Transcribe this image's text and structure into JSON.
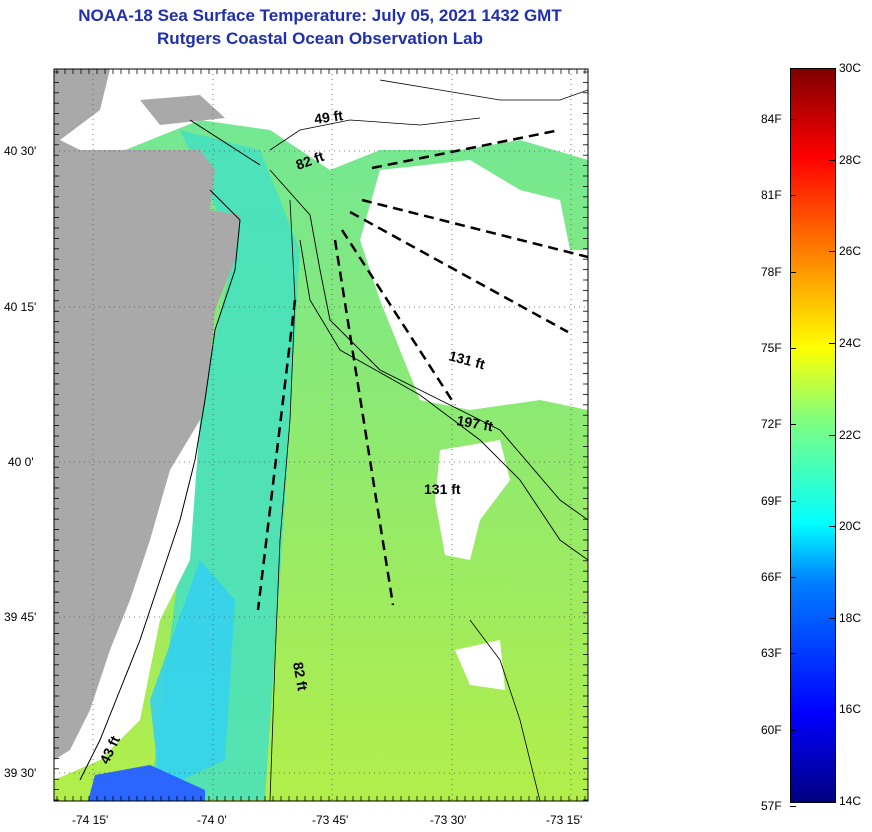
{
  "title": {
    "line1": "NOAA-18 Sea Surface Temperature:  July 05, 2021 1432 GMT",
    "line2": "Rutgers Coastal Ocean Observation Lab"
  },
  "map": {
    "lat_labels": [
      "40 30'",
      "40 15'",
      "40 0'",
      "39 45'",
      "39 30'"
    ],
    "lon_labels": [
      "-74 15'",
      "-74 0'",
      "-73 45'",
      "-73 30'",
      "-73 15'"
    ],
    "depth_labels": [
      "49 ft",
      "82 ft",
      "131 ft",
      "197 ft",
      "131 ft",
      "82 ft",
      "43 ft"
    ],
    "colors": {
      "land": "#a9a9a9",
      "cloud": "#ffffff",
      "water_warm": "#a8ee50",
      "water_mid": "#6fe79a",
      "water_cool": "#31dbe0",
      "water_cold": "#1f63ff"
    }
  },
  "colorbar": {
    "f_labels": [
      "84F",
      "81F",
      "78F",
      "75F",
      "72F",
      "69F",
      "66F",
      "63F",
      "60F",
      "57F"
    ],
    "c_labels": [
      "30C",
      "28C",
      "26C",
      "24C",
      "22C",
      "20C",
      "18C",
      "16C",
      "14C"
    ],
    "colors": [
      "#00007f",
      "#0000ff",
      "#007fff",
      "#00ffff",
      "#7fff7f",
      "#ffff00",
      "#ff7f00",
      "#ff0000",
      "#7f0000"
    ]
  }
}
